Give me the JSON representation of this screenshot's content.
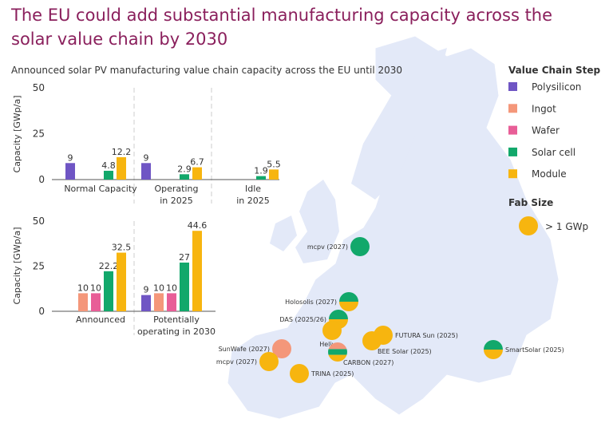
{
  "title": "The EU could add substantial manufacturing capacity across the solar value chain by 2030",
  "subtitle": "Announced solar PV manufacturing value chain capacity across the EU until 2030",
  "colors": {
    "Polysilicon": "#6f55c4",
    "Ingot": "#f4977a",
    "Wafer": "#e85e97",
    "Solar cell": "#12a86b",
    "Module": "#f7b50f",
    "map": "#e3e9f8",
    "title": "#8a1f5c"
  },
  "legend": {
    "title": "Value Chain Step",
    "items": [
      "Polysilicon",
      "Ingot",
      "Wafer",
      "Solar cell",
      "Module"
    ],
    "fab_title": "Fab Size",
    "fab_label": "> 1 GWp"
  },
  "chart_data": [
    {
      "type": "bar",
      "ylabel": "Capacity [GWp/a]",
      "ylim": [
        0,
        50
      ],
      "yticks": [
        0,
        25,
        50
      ],
      "categories": [
        "Normal Capacity",
        "Operating in 2025",
        "Idle in 2025"
      ],
      "category_lines": [
        [
          "Normal Capacity"
        ],
        [
          "Operating",
          "in 2025"
        ],
        [
          "Idle",
          "in 2025"
        ]
      ],
      "series": [
        {
          "name": "Polysilicon",
          "values": [
            9,
            9,
            null
          ]
        },
        {
          "name": "Ingot",
          "values": [
            null,
            null,
            null
          ]
        },
        {
          "name": "Wafer",
          "values": [
            null,
            null,
            null
          ]
        },
        {
          "name": "Solar cell",
          "values": [
            4.8,
            2.9,
            1.9
          ]
        },
        {
          "name": "Module",
          "values": [
            12.2,
            6.7,
            5.5
          ]
        }
      ]
    },
    {
      "type": "bar",
      "ylabel": "Capacity [GWp/a]",
      "ylim": [
        0,
        50
      ],
      "yticks": [
        0,
        25,
        50
      ],
      "categories": [
        "Announced",
        "Potentially operating in 2030"
      ],
      "category_lines": [
        [
          "Announced"
        ],
        [
          "Potentially",
          "operating in 2030"
        ]
      ],
      "series": [
        {
          "name": "Polysilicon",
          "values": [
            null,
            9
          ]
        },
        {
          "name": "Ingot",
          "values": [
            10,
            10
          ]
        },
        {
          "name": "Wafer",
          "values": [
            10,
            10
          ]
        },
        {
          "name": "Solar cell",
          "values": [
            22.2,
            27
          ]
        },
        {
          "name": "Module",
          "values": [
            32.5,
            44.6
          ]
        }
      ]
    }
  ],
  "fabs": [
    {
      "label": "mcpv (2027)",
      "steps": [
        "Solar cell"
      ]
    },
    {
      "label": "Holosolis (2027)",
      "steps": [
        "Solar cell",
        "Module"
      ]
    },
    {
      "label": "DAS (2025/26)",
      "steps": [
        "Solar cell",
        "Module"
      ]
    },
    {
      "label": "Heliup",
      "steps": [
        "Module"
      ]
    },
    {
      "label": "SunWafe (2027)",
      "steps": [
        "Ingot"
      ]
    },
    {
      "label": "mcpv (2027)",
      "steps": [
        "Module"
      ]
    },
    {
      "label": "TRINA (2025)",
      "steps": [
        "Module"
      ]
    },
    {
      "label": "CARBON (2027)",
      "steps": [
        "Ingot",
        "Solar cell",
        "Module"
      ]
    },
    {
      "label": "BEE Solar (2025)",
      "steps": [
        "Module"
      ]
    },
    {
      "label": "FUTURA Sun (2025)",
      "steps": [
        "Module"
      ]
    },
    {
      "label": "SmartSolar (2025)",
      "steps": [
        "Solar cell",
        "Module"
      ]
    }
  ]
}
